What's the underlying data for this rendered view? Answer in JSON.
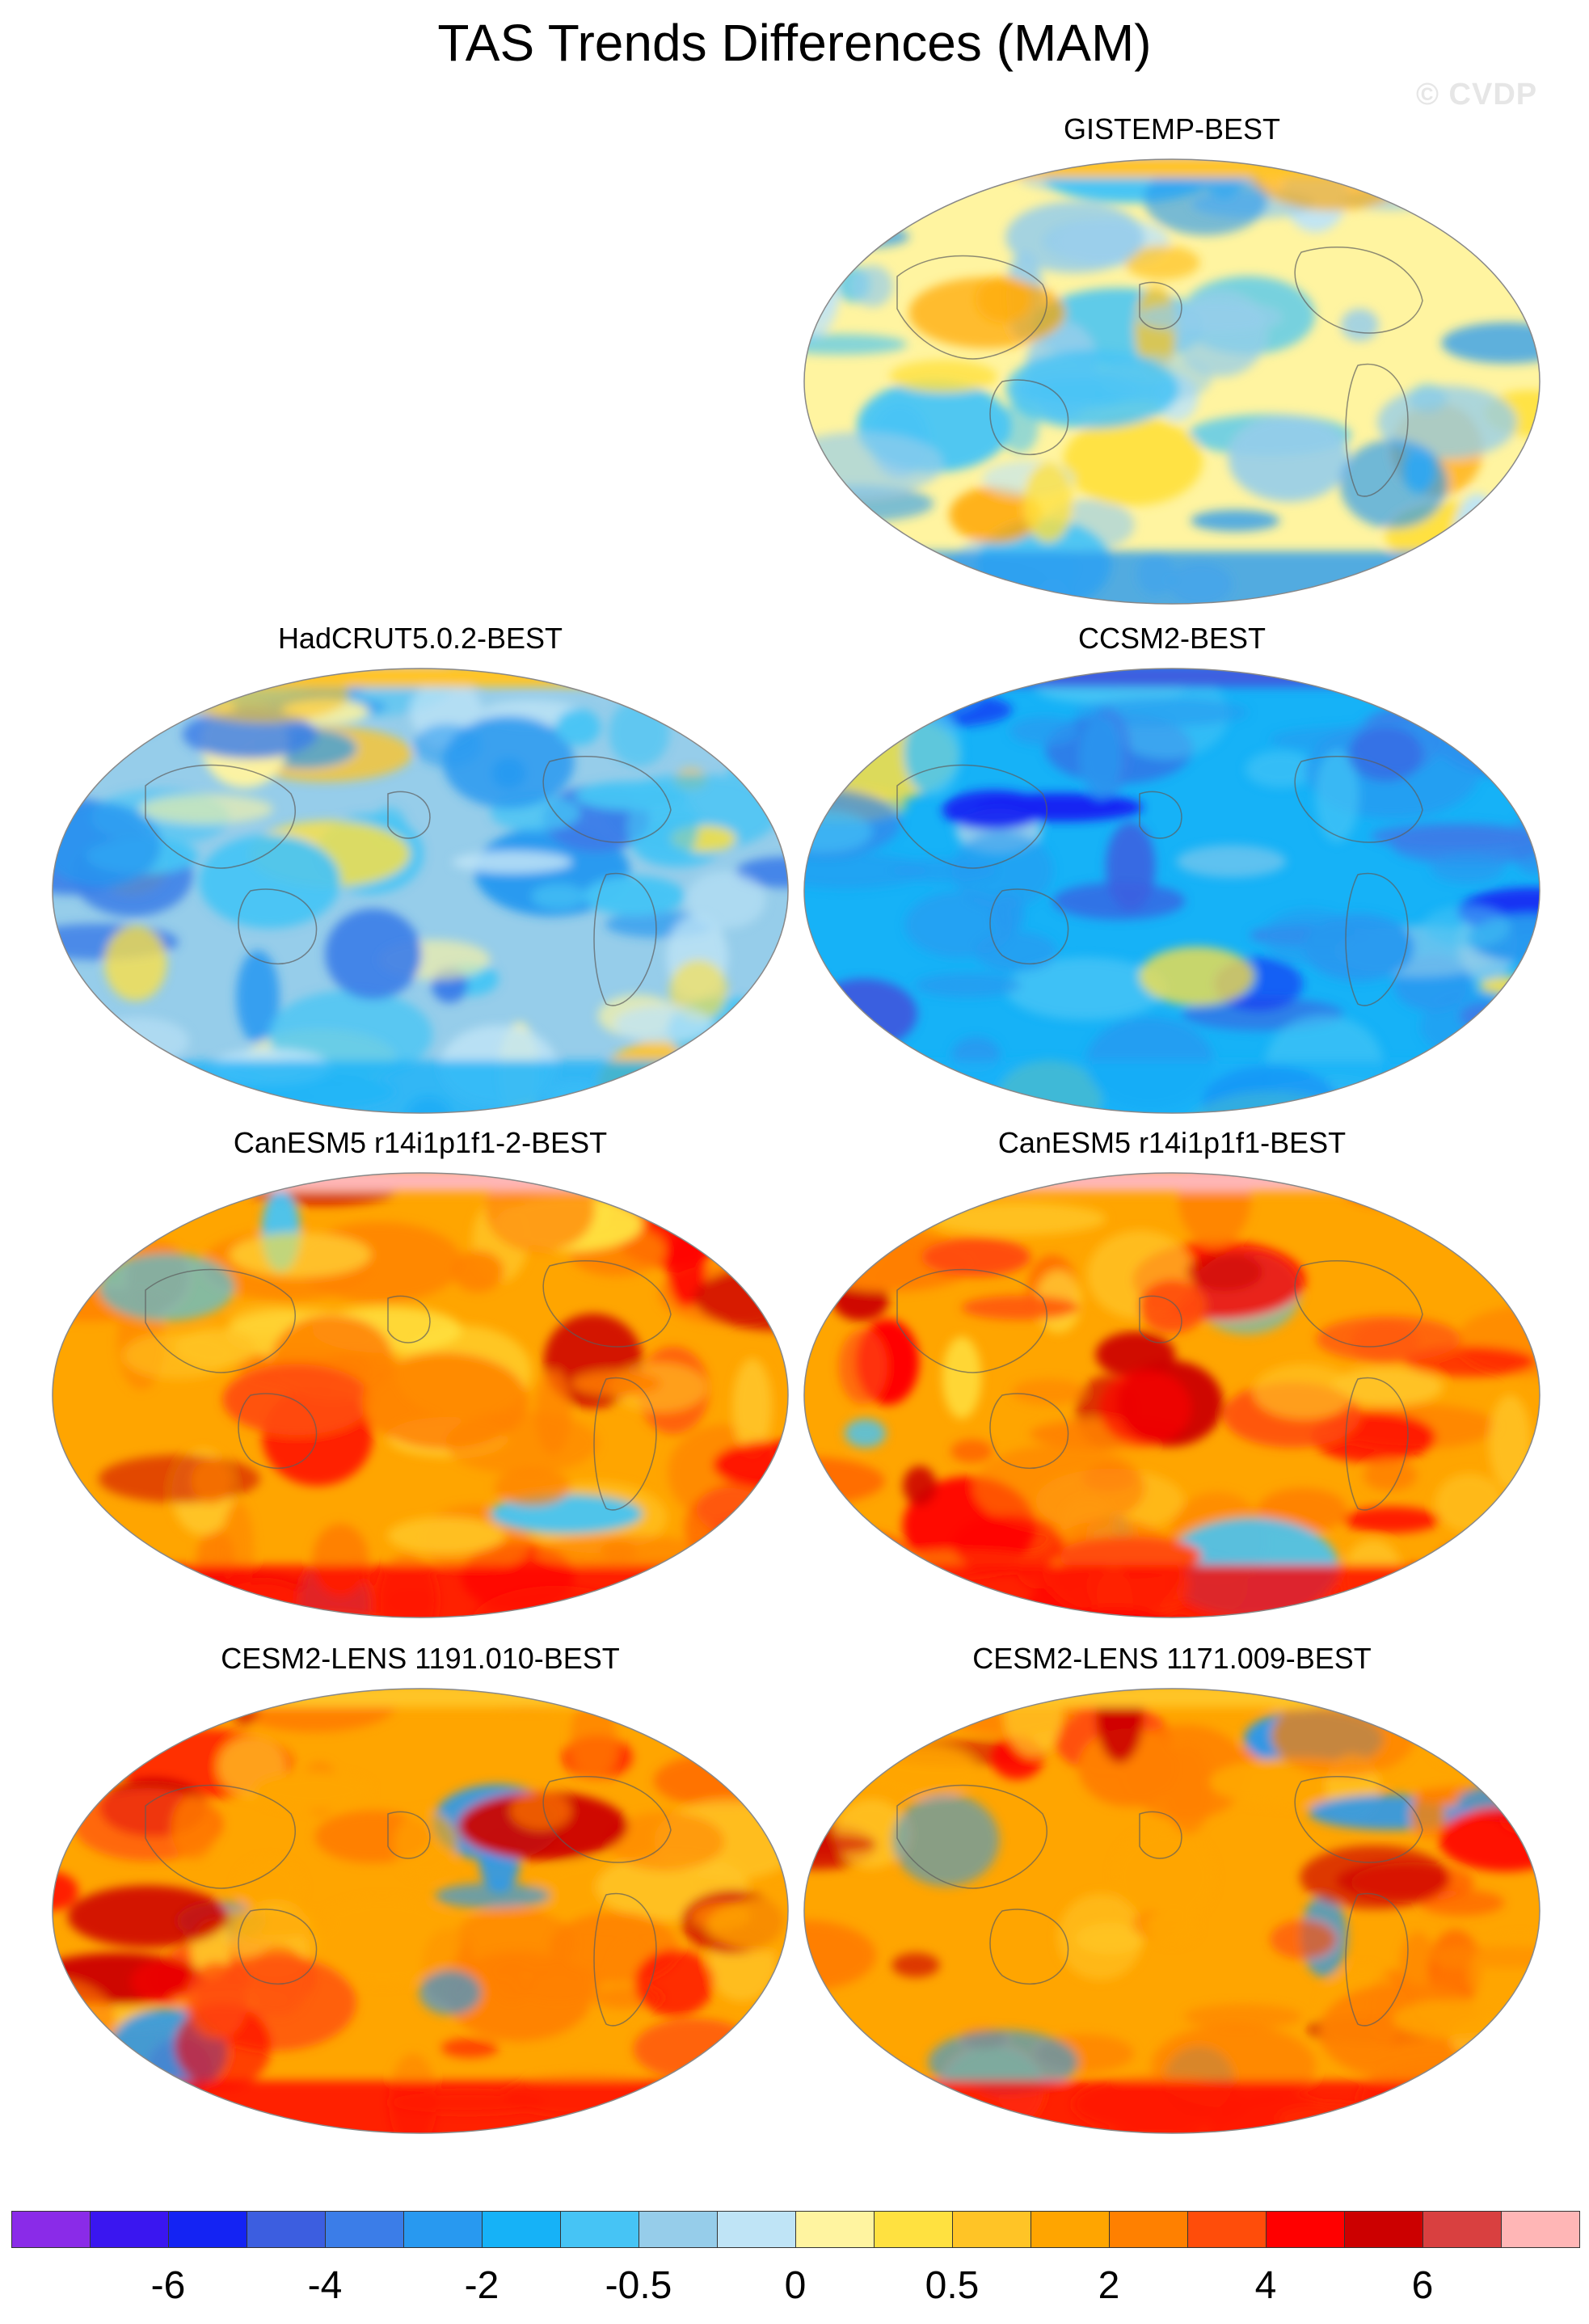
{
  "title": "TAS Trends Differences (MAM)",
  "watermark": "© CVDP",
  "panels": [
    {
      "title": "GISTEMP-BEST",
      "palette": "mixed"
    },
    {
      "title": "HadCRUT5.0.2-BEST",
      "palette": "cool"
    },
    {
      "title": "CCSM2-BEST",
      "palette": "blue"
    },
    {
      "title": "CanESM5 r14i1p1f1-2-BEST",
      "palette": "hot"
    },
    {
      "title": "CanESM5 r14i1p1f1-BEST",
      "palette": "hot"
    },
    {
      "title": "CESM2-LENS 1191.010-BEST",
      "palette": "warm"
    },
    {
      "title": "CESM2-LENS 1171.009-BEST",
      "palette": "warm"
    }
  ],
  "colorbar": {
    "colors": [
      "#8a2be8",
      "#3a16f0",
      "#1423f3",
      "#3c5ee0",
      "#3b7de8",
      "#2899f0",
      "#16b2f7",
      "#46c4f5",
      "#96cdea",
      "#bfe4f6",
      "#fff4a0",
      "#ffe140",
      "#ffc426",
      "#ffa500",
      "#ff8000",
      "#ff4d0a",
      "#ff0000",
      "#cc0000",
      "#d94040",
      "#ffb6b6"
    ],
    "labels": [
      "-6",
      "-4",
      "-2",
      "-0.5",
      "0",
      "0.5",
      "2",
      "4",
      "6"
    ]
  },
  "colors": {
    "land_outline": "#5c5c5c",
    "missing": "#ffffff"
  }
}
